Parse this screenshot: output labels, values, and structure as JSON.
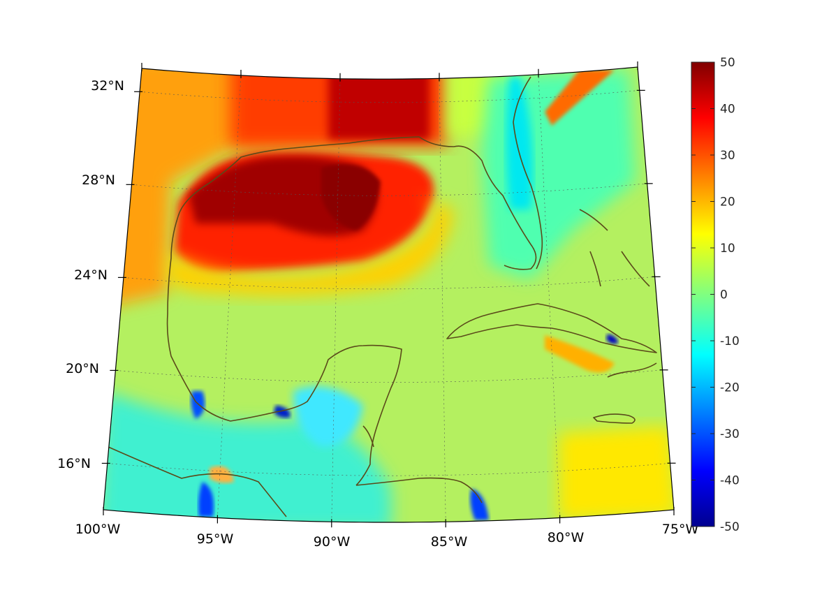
{
  "map": {
    "projection": "conic",
    "lon_range": [
      -100,
      -75
    ],
    "lat_range": [
      14,
      33
    ],
    "field_range": [
      -50,
      50
    ],
    "colormap": "jet",
    "coastline_color": "#5a4a1a",
    "grid": "dotted"
  },
  "axes": {
    "lon_labels": [
      {
        "lon": -100,
        "text": "100°W"
      },
      {
        "lon": -95,
        "text": "95°W"
      },
      {
        "lon": -90,
        "text": "90°W"
      },
      {
        "lon": -85,
        "text": "85°W"
      },
      {
        "lon": -80,
        "text": "80°W"
      },
      {
        "lon": -75,
        "text": "75°W"
      }
    ],
    "lat_labels": [
      {
        "lat": 32,
        "text": "32°N"
      },
      {
        "lat": 28,
        "text": "28°N"
      },
      {
        "lat": 24,
        "text": "24°N"
      },
      {
        "lat": 20,
        "text": "20°N"
      },
      {
        "lat": 16,
        "text": "16°N"
      }
    ]
  },
  "colorbar": {
    "labels": [
      "50",
      "40",
      "30",
      "20",
      "10",
      "0",
      "-10",
      "-20",
      "-30",
      "-40",
      "-50"
    ]
  }
}
